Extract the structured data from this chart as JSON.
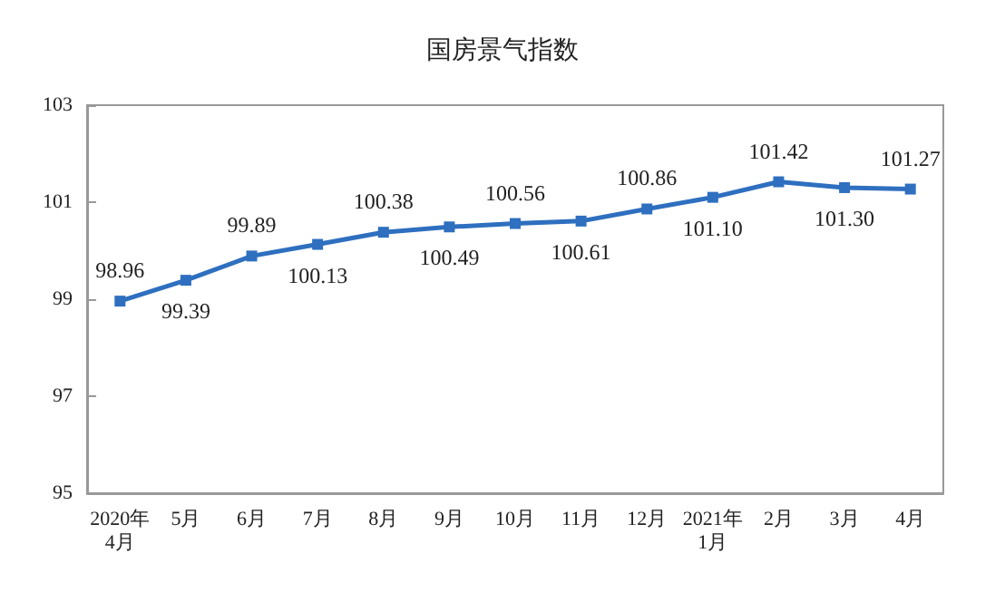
{
  "chart_data": {
    "type": "line",
    "title": "国房景气指数",
    "categories": [
      "2020年\n4月",
      "5月",
      "6月",
      "7月",
      "8月",
      "9月",
      "10月",
      "11月",
      "12月",
      "2021年\n1月",
      "2月",
      "3月",
      "4月"
    ],
    "series": [
      {
        "color": "#2e6fbf",
        "values": [
          98.96,
          99.39,
          99.89,
          100.13,
          100.38,
          100.49,
          100.56,
          100.61,
          100.86,
          101.1,
          101.42,
          101.3,
          101.27
        ],
        "value_labels": [
          "98.96",
          "99.39",
          "99.89",
          "100.13",
          "100.38",
          "100.49",
          "100.56",
          "100.61",
          "100.86",
          "101.10",
          "101.42",
          "101.30",
          "101.27"
        ]
      }
    ],
    "ylim": [
      95,
      103
    ],
    "yticks": [
      95,
      97,
      99,
      101,
      103
    ],
    "grid": false,
    "marker": "square",
    "line_style": "solid"
  }
}
